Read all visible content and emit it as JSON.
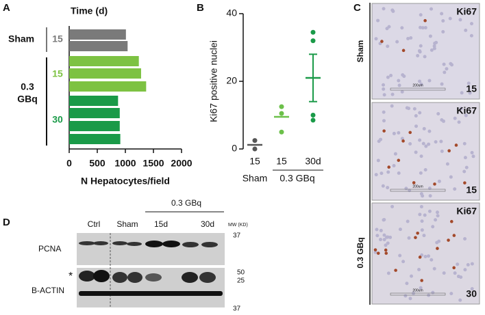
{
  "chart_data": [
    {
      "type": "hbar",
      "panel": "A",
      "title": "Time (d)",
      "x_label": "N Hepatocytes/field",
      "xlim": [
        0,
        2000
      ],
      "xticks": [
        0,
        500,
        1000,
        1500,
        2000
      ],
      "sham_label": "Sham",
      "dose_label_lines": [
        "0.3",
        "GBq"
      ],
      "groups": [
        {
          "time": "15",
          "color": "#7a7a7a",
          "values": [
            1010,
            1040
          ]
        },
        {
          "time": "15",
          "color": "#7dc242",
          "values": [
            1240,
            1280,
            1370
          ]
        },
        {
          "time": "30",
          "color": "#1a9a48",
          "values": [
            870,
            900,
            900,
            910
          ]
        }
      ]
    },
    {
      "type": "dotplot",
      "panel": "B",
      "y_label": "Ki67 positive nuclei",
      "ylim": [
        0,
        40
      ],
      "yticks": [
        0,
        20,
        40
      ],
      "categories": [
        "15",
        "15",
        "30d"
      ],
      "group_labels": [
        "Sham",
        "0.3 GBq"
      ],
      "series": [
        {
          "color": "#555555",
          "points": [
            2.5,
            0
          ],
          "mean": 1.2,
          "sem": 0
        },
        {
          "color": "#6cc04a",
          "points": [
            12.5,
            10.5,
            5
          ],
          "mean": 9.5,
          "sem": 0
        },
        {
          "color": "#1a9a48",
          "points": [
            34.5,
            32,
            10,
            8.5
          ],
          "mean": 21,
          "sem": 7
        }
      ]
    }
  ],
  "panel_c": {
    "letter": "C",
    "row_labels": [
      "Sham",
      "0.3 GBq"
    ],
    "images": [
      {
        "stain": "Ki67",
        "time": "15",
        "scale": "200um"
      },
      {
        "stain": "Ki67",
        "time": "15",
        "scale": "200um"
      },
      {
        "stain": "Ki67",
        "time": "30",
        "scale": "200um"
      }
    ]
  },
  "panel_d": {
    "letter": "D",
    "dose": "0.3 GBq",
    "lanes": [
      "Ctrl",
      "Sham",
      "15d",
      "30d"
    ],
    "mw_title": "MW (KD)",
    "mw_markers": [
      "37",
      "25",
      "50",
      "37"
    ],
    "blots": [
      "PCNA",
      "B-ACTIN"
    ],
    "asterisk": "*"
  },
  "panel_letters": [
    "A",
    "B"
  ]
}
